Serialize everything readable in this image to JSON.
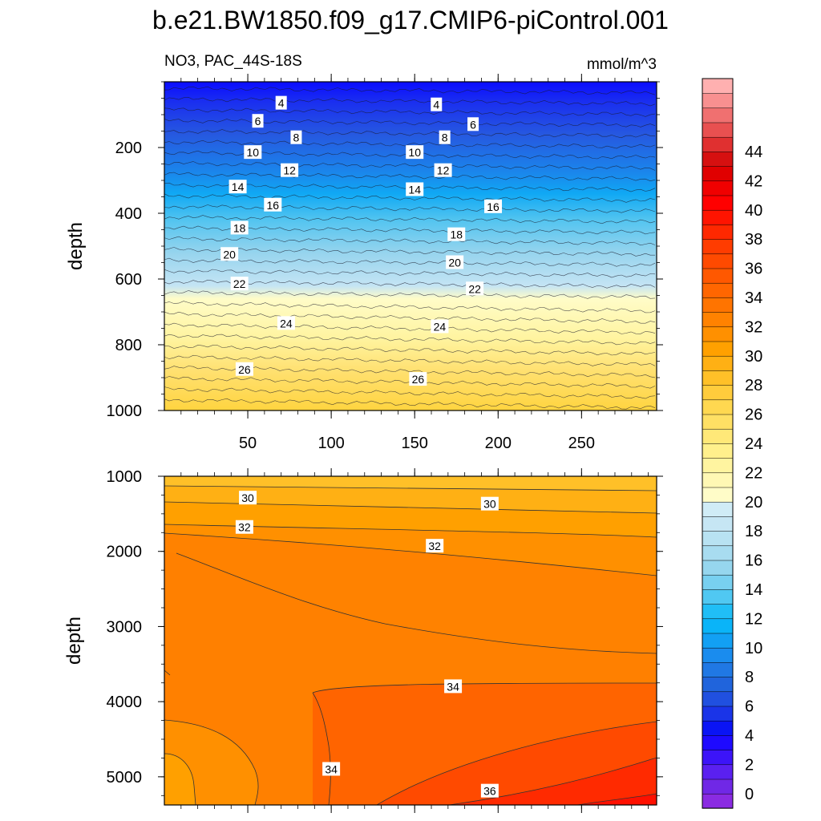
{
  "chart_data": {
    "type": "contour",
    "title": "b.e21.BW1850.f09_g17.CMIP6-piControl.001",
    "variable_label": "NO3, PAC_44S-18S",
    "units_label": "mmol/m^3",
    "panels": [
      {
        "name": "upper",
        "ylabel": "depth",
        "ylim": [
          0,
          1000
        ],
        "xlim": [
          0,
          295
        ],
        "yticks": [
          200,
          400,
          600,
          800,
          1000
        ],
        "ytick_labels": [
          "200",
          "400",
          "600",
          "800",
          "1000"
        ],
        "xticks": [
          50,
          100,
          150,
          200,
          250
        ],
        "xtick_labels": [
          "50",
          "100",
          "150",
          "200",
          "250"
        ],
        "contour_interval": 1,
        "contour_labels": [
          {
            "text": "4",
            "x": 70,
            "depth": 65
          },
          {
            "text": "4",
            "x": 163,
            "depth": 70
          },
          {
            "text": "6",
            "x": 56,
            "depth": 120
          },
          {
            "text": "6",
            "x": 185,
            "depth": 130
          },
          {
            "text": "8",
            "x": 79,
            "depth": 170
          },
          {
            "text": "8",
            "x": 168,
            "depth": 170
          },
          {
            "text": "10",
            "x": 53,
            "depth": 215
          },
          {
            "text": "10",
            "x": 150,
            "depth": 215
          },
          {
            "text": "12",
            "x": 75,
            "depth": 270
          },
          {
            "text": "12",
            "x": 167,
            "depth": 270
          },
          {
            "text": "14",
            "x": 44,
            "depth": 320
          },
          {
            "text": "14",
            "x": 150,
            "depth": 328
          },
          {
            "text": "16",
            "x": 65,
            "depth": 375
          },
          {
            "text": "16",
            "x": 197,
            "depth": 380
          },
          {
            "text": "18",
            "x": 45,
            "depth": 445
          },
          {
            "text": "18",
            "x": 175,
            "depth": 465
          },
          {
            "text": "20",
            "x": 39,
            "depth": 525
          },
          {
            "text": "20",
            "x": 174,
            "depth": 550
          },
          {
            "text": "22",
            "x": 45,
            "depth": 615
          },
          {
            "text": "22",
            "x": 186,
            "depth": 630
          },
          {
            "text": "24",
            "x": 73,
            "depth": 735
          },
          {
            "text": "24",
            "x": 165,
            "depth": 745
          },
          {
            "text": "26",
            "x": 48,
            "depth": 875
          },
          {
            "text": "26",
            "x": 152,
            "depth": 905
          }
        ]
      },
      {
        "name": "lower",
        "ylabel": "depth",
        "ylim": [
          1000,
          5375
        ],
        "xlim": [
          0,
          295
        ],
        "yticks": [
          1000,
          2000,
          3000,
          4000,
          5000
        ],
        "ytick_labels": [
          "1000",
          "2000",
          "3000",
          "4000",
          "5000"
        ],
        "contour_interval": 1,
        "contour_labels": [
          {
            "text": "30",
            "x": 50,
            "depth": 1290
          },
          {
            "text": "30",
            "x": 195,
            "depth": 1370
          },
          {
            "text": "32",
            "x": 48,
            "depth": 1680
          },
          {
            "text": "32",
            "x": 162,
            "depth": 1930
          },
          {
            "text": "34",
            "x": 173,
            "depth": 3800
          },
          {
            "text": "34",
            "x": 100,
            "depth": 4900
          },
          {
            "text": "36",
            "x": 195,
            "depth": 5190
          }
        ]
      }
    ],
    "colorbar": {
      "levels": [
        0,
        2,
        4,
        6,
        8,
        10,
        12,
        14,
        16,
        18,
        20,
        22,
        24,
        26,
        28,
        30,
        32,
        34,
        36,
        38,
        40,
        42,
        44
      ],
      "labels": [
        "0",
        "2",
        "4",
        "6",
        "8",
        "10",
        "12",
        "14",
        "16",
        "18",
        "20",
        "22",
        "24",
        "26",
        "28",
        "30",
        "32",
        "34",
        "36",
        "38",
        "40",
        "42",
        "44"
      ],
      "colors": [
        "#8a2be2",
        "#7028e6",
        "#5a20f0",
        "#3c14f8",
        "#1e0aff",
        "#0a14f5",
        "#1a34e8",
        "#2050e0",
        "#2064dc",
        "#2078e4",
        "#1a8cee",
        "#12a0f4",
        "#0ab4f8",
        "#20bef6",
        "#50c8f2",
        "#78d0f0",
        "#96d6ee",
        "#a8dcf0",
        "#b8e2f2",
        "#c6e6f4",
        "#d0ecf6",
        "#fffcc8",
        "#fff8b4",
        "#fff4a0",
        "#fff08c",
        "#ffe878",
        "#ffe064",
        "#ffd850",
        "#ffcc3c",
        "#ffc028",
        "#ffb014",
        "#ffa000",
        "#ff9000",
        "#ff8200",
        "#ff7400",
        "#ff6600",
        "#ff5800",
        "#ff4a00",
        "#ff3c00",
        "#ff2800",
        "#ff1400",
        "#ff0000",
        "#f00000",
        "#e00000",
        "#d61010",
        "#e03030",
        "#e85050",
        "#f07070",
        "#f89090",
        "#ffb0b0"
      ]
    }
  }
}
